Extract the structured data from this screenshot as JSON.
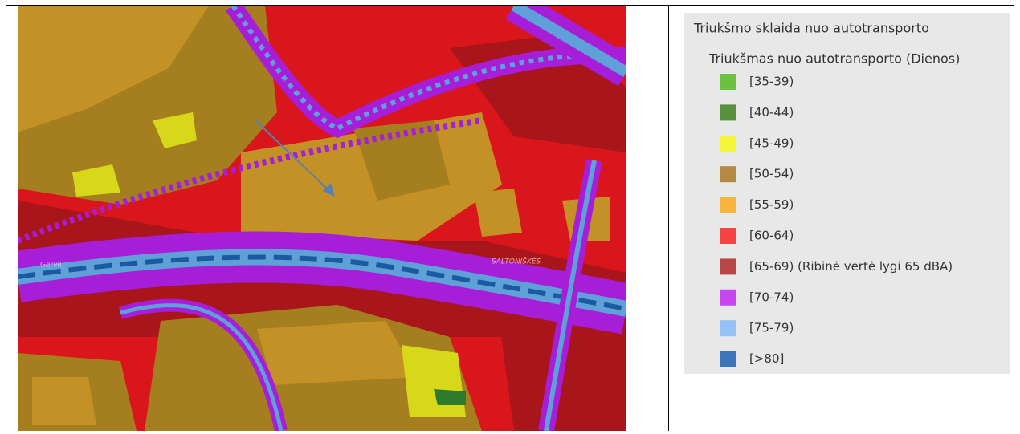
{
  "legend": {
    "title": "Triukšmo sklaida nuo autotransporto",
    "subtitle": "Triukšmas nuo autotransporto (Dienos)",
    "items": [
      {
        "label": "[35-39)",
        "color": "#6cc140"
      },
      {
        "label": "[40-44)",
        "color": "#5a9141"
      },
      {
        "label": "[45-49)",
        "color": "#f5f53a"
      },
      {
        "label": "[50-54)",
        "color": "#b58943"
      },
      {
        "label": "[55-59)",
        "color": "#f7b53d"
      },
      {
        "label": "[60-64)",
        "color": "#f34343"
      },
      {
        "label": "[65-69) (Ribinė vertė lygi 65 dBA)",
        "color": "#b84747"
      },
      {
        "label": "[70-74)",
        "color": "#c646f0"
      },
      {
        "label": "[75-79)",
        "color": "#96c1f7"
      },
      {
        "label": "[>80]",
        "color": "#3d76b8"
      }
    ]
  },
  "map": {
    "labels": [
      "Gervių",
      "SALTONIŠKĖS"
    ]
  }
}
